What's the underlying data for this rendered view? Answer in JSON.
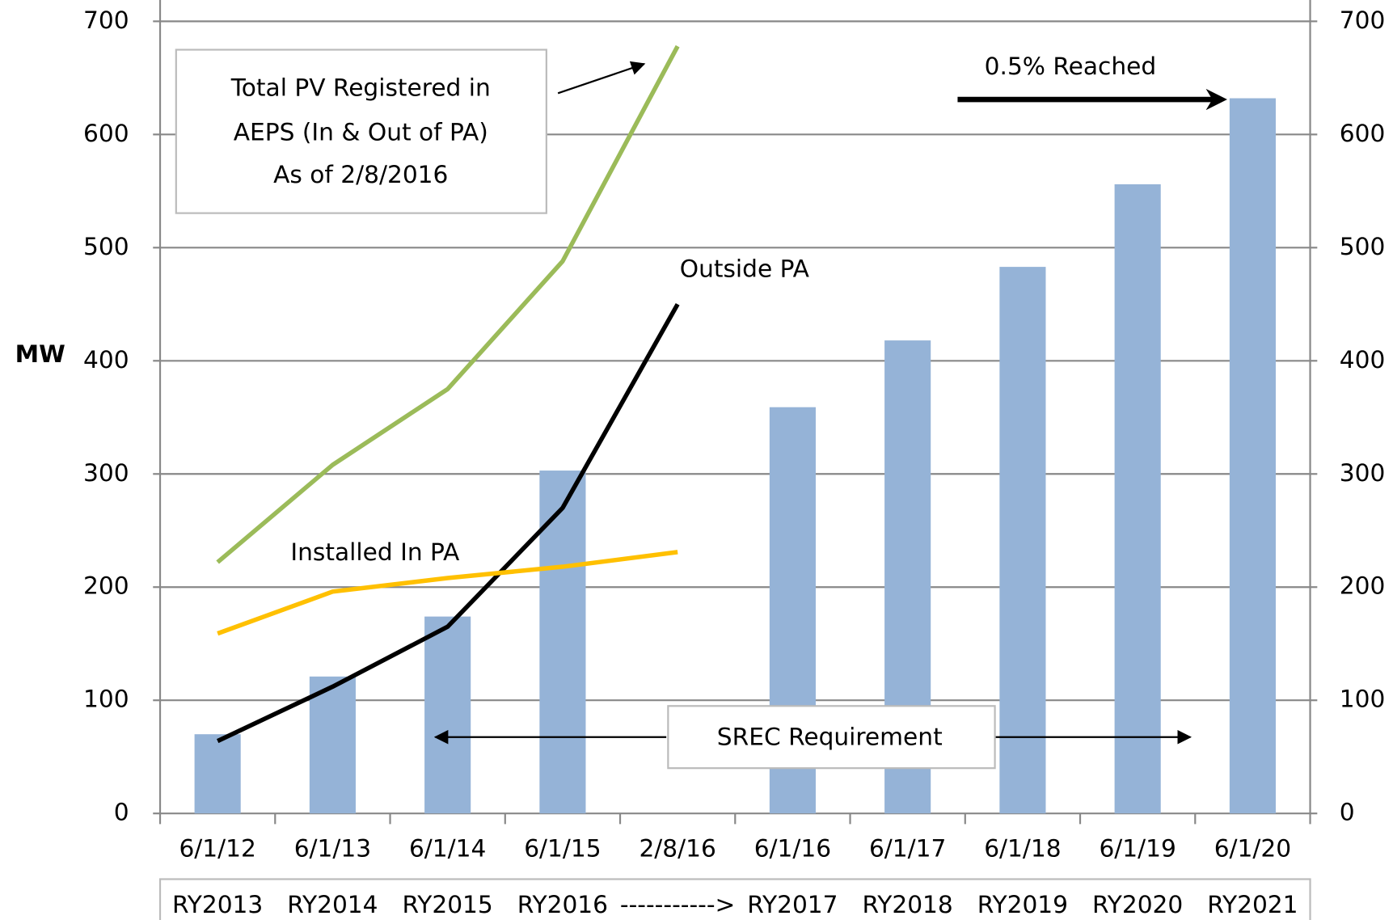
{
  "chart_data": {
    "type": "bar",
    "y_label": "MW",
    "categories": [
      "6/1/12",
      "6/1/13",
      "6/1/14",
      "6/1/15",
      "2/8/16",
      "6/1/16",
      "6/1/17",
      "6/1/18",
      "6/1/19",
      "6/1/20"
    ],
    "reporting_years": [
      "RY2013",
      "RY2014",
      "RY2015",
      "RY2016",
      "----------->",
      "RY2017",
      "RY2018",
      "RY2019",
      "RY2020",
      "RY2021"
    ],
    "series": [
      {
        "name": "SREC Requirement",
        "type": "bar",
        "color": "#95b3d7",
        "values": [
          70,
          121,
          174,
          303,
          null,
          359,
          418,
          483,
          556,
          632
        ]
      },
      {
        "type": "line",
        "color": "#9bbb59",
        "values": [
          222,
          308,
          375,
          488,
          678,
          null,
          null,
          null,
          null,
          null
        ]
      },
      {
        "name": "Outside PA",
        "type": "line",
        "color": "#000000",
        "values": [
          64,
          112,
          165,
          270,
          450,
          null,
          null,
          null,
          null,
          null
        ]
      },
      {
        "name": "Installed In PA",
        "type": "line",
        "color": "#ffc000",
        "values": [
          159,
          196,
          208,
          218,
          231,
          null,
          null,
          null,
          null,
          null
        ]
      }
    ],
    "annotations": {
      "total_pv": [
        "Total PV Registered in",
        "AEPS (In & Out of PA)",
        "As of 2/8/2016"
      ],
      "reached": "0.5% Reached"
    },
    "ylim": [
      0,
      700
    ],
    "yticks": [
      0,
      100,
      200,
      300,
      400,
      500,
      600,
      700
    ],
    "y2lim": [
      0,
      700
    ],
    "y2ticks": [
      0,
      100,
      200,
      300,
      400,
      500,
      600,
      700
    ],
    "grid": true
  }
}
